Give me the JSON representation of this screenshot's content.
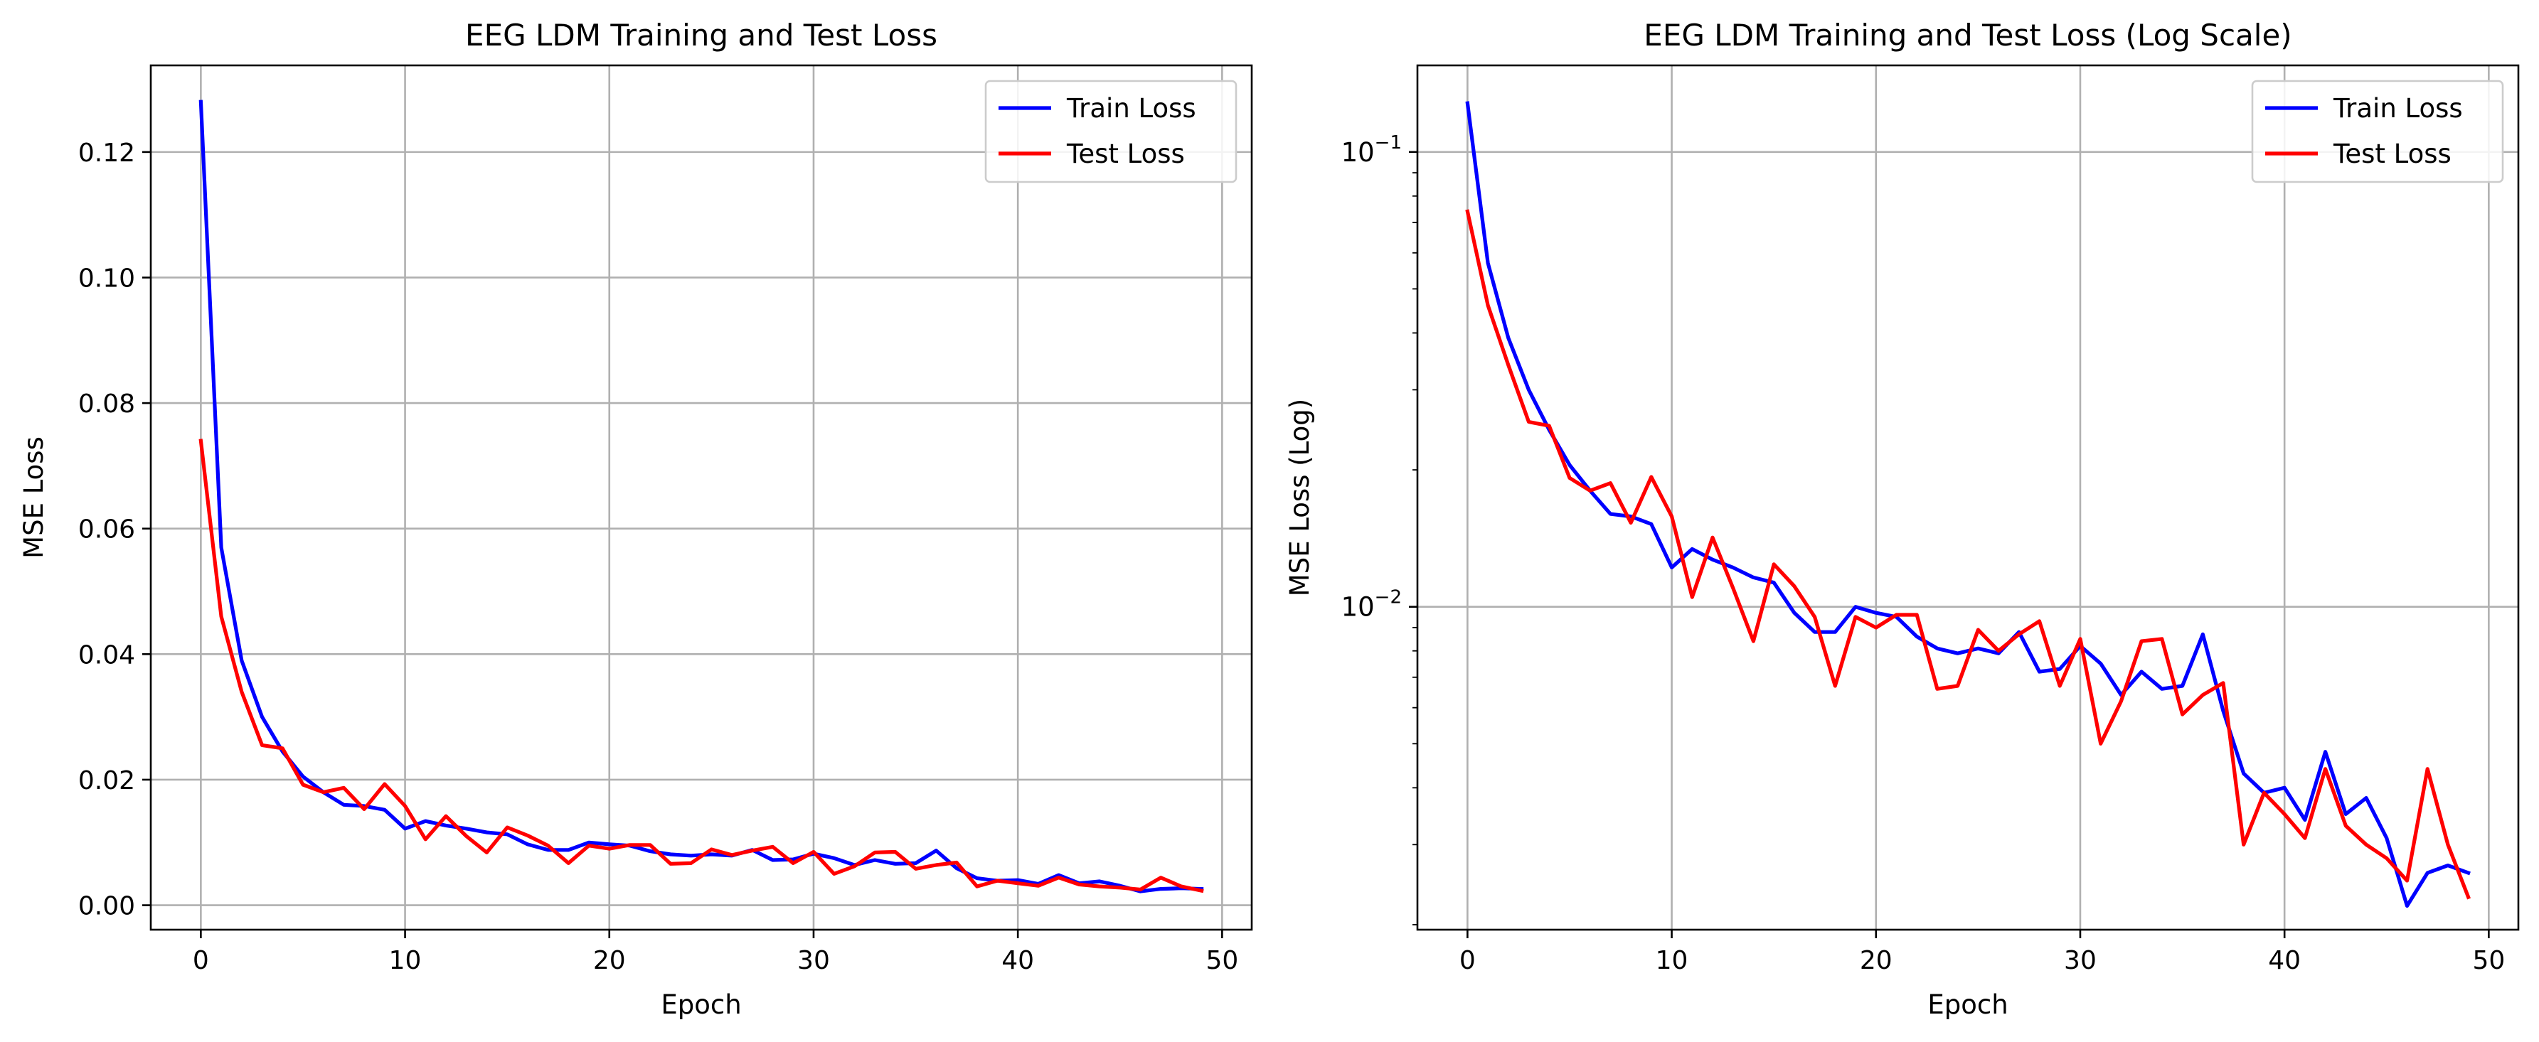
{
  "chart_data": [
    {
      "type": "line",
      "title": "EEG LDM Training and Test Loss",
      "xlabel": "Epoch",
      "ylabel": "MSE Loss",
      "xscale": "linear",
      "yscale": "linear",
      "xlim": [
        -2.45,
        51.45
      ],
      "ylim": [
        -0.0039,
        0.1338
      ],
      "xticks": [
        0,
        10,
        20,
        30,
        40,
        50
      ],
      "xtick_labels": [
        "0",
        "10",
        "20",
        "30",
        "40",
        "50"
      ],
      "yticks": [
        0,
        0.02,
        0.04,
        0.06,
        0.08,
        0.1,
        0.12
      ],
      "ytick_labels": [
        "0.00",
        "0.02",
        "0.04",
        "0.06",
        "0.08",
        "0.10",
        "0.12"
      ],
      "grid": true,
      "legend_position": "top-right",
      "x": [
        0,
        1,
        2,
        3,
        4,
        5,
        6,
        7,
        8,
        9,
        10,
        11,
        12,
        13,
        14,
        15,
        16,
        17,
        18,
        19,
        20,
        21,
        22,
        23,
        24,
        25,
        26,
        27,
        28,
        29,
        30,
        31,
        32,
        33,
        34,
        35,
        36,
        37,
        38,
        39,
        40,
        41,
        42,
        43,
        44,
        45,
        46,
        47,
        48,
        49
      ],
      "series": [
        {
          "name": "Train Loss",
          "color": "#0000ff",
          "values": [
            0.128,
            0.057,
            0.039,
            0.03,
            0.0245,
            0.0205,
            0.018,
            0.016,
            0.0158,
            0.0152,
            0.0122,
            0.0134,
            0.0127,
            0.0122,
            0.0116,
            0.0113,
            0.0097,
            0.0088,
            0.0088,
            0.01,
            0.0097,
            0.0095,
            0.0086,
            0.0081,
            0.0079,
            0.0081,
            0.0079,
            0.0088,
            0.0072,
            0.0073,
            0.0082,
            0.0075,
            0.0064,
            0.0072,
            0.0066,
            0.0067,
            0.0087,
            0.0059,
            0.0043,
            0.0039,
            0.004,
            0.0034,
            0.0048,
            0.0035,
            0.0038,
            0.0031,
            0.0022,
            0.0026,
            0.0027,
            0.0026
          ]
        },
        {
          "name": "Test Loss",
          "color": "#ff0000",
          "values": [
            0.074,
            0.046,
            0.034,
            0.0255,
            0.025,
            0.0192,
            0.018,
            0.0187,
            0.0153,
            0.0193,
            0.0158,
            0.0105,
            0.0142,
            0.011,
            0.0084,
            0.0124,
            0.0111,
            0.0095,
            0.0067,
            0.0095,
            0.009,
            0.0096,
            0.0096,
            0.0066,
            0.0067,
            0.0089,
            0.008,
            0.0087,
            0.0093,
            0.0067,
            0.0085,
            0.005,
            0.0062,
            0.0084,
            0.0085,
            0.0058,
            0.0064,
            0.0068,
            0.003,
            0.0039,
            0.0035,
            0.0031,
            0.0044,
            0.0033,
            0.003,
            0.0028,
            0.0025,
            0.0044,
            0.003,
            0.0023
          ]
        }
      ]
    },
    {
      "type": "line",
      "title": "EEG LDM Training and Test Loss (Log Scale)",
      "xlabel": "Epoch",
      "ylabel": "MSE Loss (Log)",
      "xscale": "linear",
      "yscale": "log",
      "xlim": [
        -2.45,
        51.45
      ],
      "ylim": [
        0.00195,
        0.155
      ],
      "xticks": [
        0,
        10,
        20,
        30,
        40,
        50
      ],
      "xtick_labels": [
        "0",
        "10",
        "20",
        "30",
        "40",
        "50"
      ],
      "yticks": [
        0.01,
        0.1
      ],
      "ytick_labels": [
        {
          "base": "10",
          "exp": "−2"
        },
        {
          "base": "10",
          "exp": "−1"
        }
      ],
      "grid": true,
      "legend_position": "top-right",
      "x": [
        0,
        1,
        2,
        3,
        4,
        5,
        6,
        7,
        8,
        9,
        10,
        11,
        12,
        13,
        14,
        15,
        16,
        17,
        18,
        19,
        20,
        21,
        22,
        23,
        24,
        25,
        26,
        27,
        28,
        29,
        30,
        31,
        32,
        33,
        34,
        35,
        36,
        37,
        38,
        39,
        40,
        41,
        42,
        43,
        44,
        45,
        46,
        47,
        48,
        49
      ],
      "series": [
        {
          "name": "Train Loss",
          "color": "#0000ff",
          "values": [
            0.128,
            0.057,
            0.039,
            0.03,
            0.0245,
            0.0205,
            0.018,
            0.016,
            0.0158,
            0.0152,
            0.0122,
            0.0134,
            0.0127,
            0.0122,
            0.0116,
            0.0113,
            0.0097,
            0.0088,
            0.0088,
            0.01,
            0.0097,
            0.0095,
            0.0086,
            0.0081,
            0.0079,
            0.0081,
            0.0079,
            0.0088,
            0.0072,
            0.0073,
            0.0082,
            0.0075,
            0.0064,
            0.0072,
            0.0066,
            0.0067,
            0.0087,
            0.0059,
            0.0043,
            0.0039,
            0.004,
            0.0034,
            0.0048,
            0.0035,
            0.0038,
            0.0031,
            0.0022,
            0.0026,
            0.0027,
            0.0026
          ]
        },
        {
          "name": "Test Loss",
          "color": "#ff0000",
          "values": [
            0.074,
            0.046,
            0.034,
            0.0255,
            0.025,
            0.0192,
            0.018,
            0.0187,
            0.0153,
            0.0193,
            0.0158,
            0.0105,
            0.0142,
            0.011,
            0.0084,
            0.0124,
            0.0111,
            0.0095,
            0.0067,
            0.0095,
            0.009,
            0.0096,
            0.0096,
            0.0066,
            0.0067,
            0.0089,
            0.008,
            0.0087,
            0.0093,
            0.0067,
            0.0085,
            0.005,
            0.0062,
            0.0084,
            0.0085,
            0.0058,
            0.0064,
            0.0068,
            0.003,
            0.0039,
            0.0035,
            0.0031,
            0.0044,
            0.0033,
            0.003,
            0.0028,
            0.0025,
            0.0044,
            0.003,
            0.0023
          ]
        }
      ]
    }
  ]
}
